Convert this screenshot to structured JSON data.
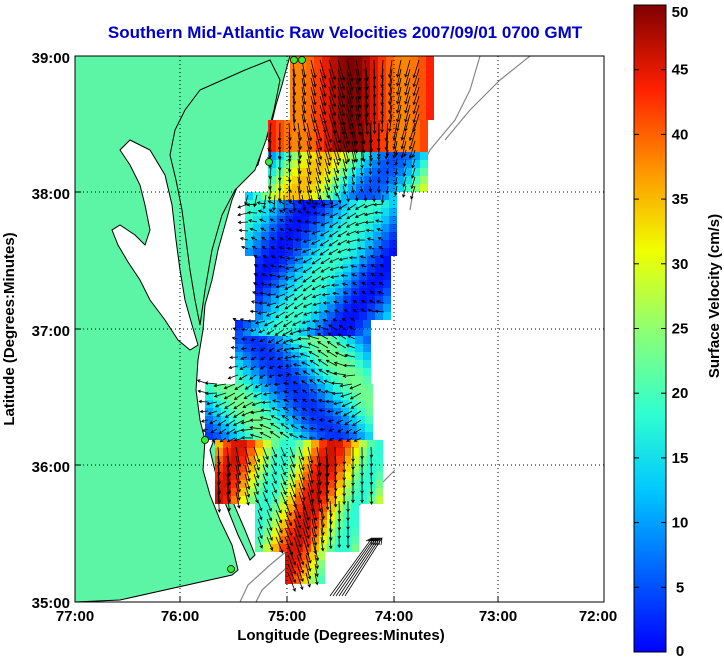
{
  "title": "Southern Mid-Atlantic Raw Velocities 2007/09/01 0700 GMT",
  "x_axis": {
    "label": "Longitude (Degrees:Minutes)",
    "ticks": [
      "77:00",
      "76:00",
      "75:00",
      "74:00",
      "73:00",
      "72:00"
    ]
  },
  "y_axis": {
    "label": "Latitude (Degrees:Minutes)",
    "ticks": [
      "39:00",
      "38:00",
      "37:00",
      "36:00",
      "35:00"
    ]
  },
  "colorbar": {
    "label": "Surface Velocity (cm/s)",
    "ticks": [
      "50",
      "45",
      "40",
      "35",
      "30",
      "25",
      "20",
      "15",
      "10",
      "5",
      "0"
    ],
    "range": [
      0,
      50
    ],
    "colormap": "jet"
  },
  "map": {
    "lon_range": [
      -77,
      -72
    ],
    "lat_range": [
      35,
      39
    ],
    "land_color": "#5cf5a5",
    "coast_color": "#000000",
    "gridlines": "dotted",
    "features": [
      "coastline",
      "bathymetry-contours",
      "radar-sites",
      "velocity-vectors"
    ]
  }
}
